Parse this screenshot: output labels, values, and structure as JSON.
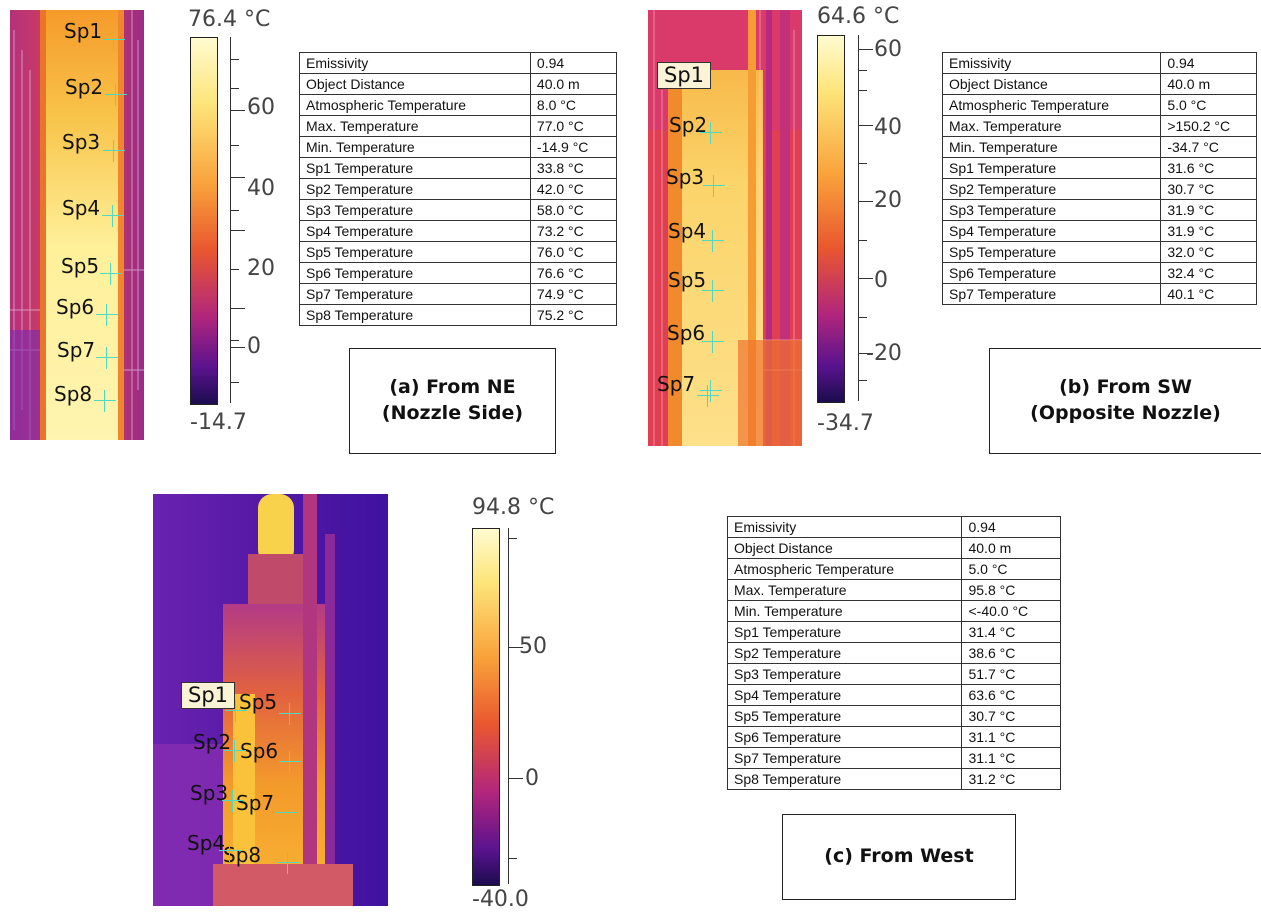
{
  "panels": [
    {
      "id": "a",
      "scale": {
        "max_label": "76.4 °C",
        "min_label": "-14.7",
        "ticks": [
          "60",
          "40",
          "20",
          "0"
        ]
      },
      "spots": [
        "Sp1",
        "Sp2",
        "Sp3",
        "Sp4",
        "Sp5",
        "Sp6",
        "Sp7",
        "Sp8"
      ],
      "caption": {
        "line1": "(a)  From NE",
        "line2": "(Nozzle Side)"
      },
      "table": [
        [
          "Emissivity",
          "0.94"
        ],
        [
          "Object Distance",
          "40.0 m"
        ],
        [
          "Atmospheric Temperature",
          "8.0 °C"
        ],
        [
          "Max. Temperature",
          "77.0 °C"
        ],
        [
          "Min. Temperature",
          "-14.9 °C"
        ],
        [
          "Sp1 Temperature",
          "33.8 °C"
        ],
        [
          "Sp2 Temperature",
          "42.0 °C"
        ],
        [
          "Sp3 Temperature",
          "58.0 °C"
        ],
        [
          "Sp4 Temperature",
          "73.2 °C"
        ],
        [
          "Sp5 Temperature",
          "76.0 °C"
        ],
        [
          "Sp6 Temperature",
          "76.6 °C"
        ],
        [
          "Sp7 Temperature",
          "74.9 °C"
        ],
        [
          "Sp8 Temperature",
          "75.2 °C"
        ]
      ]
    },
    {
      "id": "b",
      "scale": {
        "max_label": "64.6 °C",
        "min_label": "-34.7",
        "ticks": [
          "60",
          "40",
          "20",
          "0",
          "-20"
        ]
      },
      "spots": [
        "Sp1",
        "Sp2",
        "Sp3",
        "Sp4",
        "Sp5",
        "Sp6",
        "Sp7"
      ],
      "caption": {
        "line1": "(b)  From SW",
        "line2": "(Opposite Nozzle)"
      },
      "table": [
        [
          "Emissivity",
          "0.94"
        ],
        [
          "Object Distance",
          "40.0 m"
        ],
        [
          "Atmospheric Temperature",
          "5.0 °C"
        ],
        [
          "Max. Temperature",
          ">150.2 °C"
        ],
        [
          "Min. Temperature",
          "-34.7 °C"
        ],
        [
          "Sp1 Temperature",
          "31.6 °C"
        ],
        [
          "Sp2 Temperature",
          "30.7 °C"
        ],
        [
          "Sp3 Temperature",
          "31.9 °C"
        ],
        [
          "Sp4 Temperature",
          "31.9 °C"
        ],
        [
          "Sp5 Temperature",
          "32.0 °C"
        ],
        [
          "Sp6 Temperature",
          "32.4 °C"
        ],
        [
          "Sp7 Temperature",
          "40.1 °C"
        ]
      ]
    },
    {
      "id": "c",
      "scale": {
        "max_label": "94.8 °C",
        "min_label": "-40.0",
        "ticks": [
          "50",
          "0"
        ]
      },
      "spots": [
        "Sp1",
        "Sp2",
        "Sp3",
        "Sp4",
        "Sp5",
        "Sp6",
        "Sp7",
        "Sp8"
      ],
      "caption": {
        "line1": "(c)  From West",
        "line2": ""
      },
      "table": [
        [
          "Emissivity",
          "0.94"
        ],
        [
          "Object Distance",
          "40.0 m"
        ],
        [
          "Atmospheric Temperature",
          "5.0 °C"
        ],
        [
          "Max. Temperature",
          "95.8 °C"
        ],
        [
          "Min. Temperature",
          "<-40.0 °C"
        ],
        [
          "Sp1 Temperature",
          "31.4 °C"
        ],
        [
          "Sp2 Temperature",
          "38.6 °C"
        ],
        [
          "Sp3 Temperature",
          "51.7 °C"
        ],
        [
          "Sp4 Temperature",
          "63.6 °C"
        ],
        [
          "Sp5 Temperature",
          "30.7 °C"
        ],
        [
          "Sp6 Temperature",
          "31.1 °C"
        ],
        [
          "Sp7 Temperature",
          "31.1 °C"
        ],
        [
          "Sp8 Temperature",
          "31.2 °C"
        ]
      ]
    }
  ],
  "colors": {
    "scale_hot": "#fffbd0",
    "scale_mid": "#f47a16",
    "scale_cold": "#1c0c4f",
    "crosshair": "#4ed9c3"
  }
}
